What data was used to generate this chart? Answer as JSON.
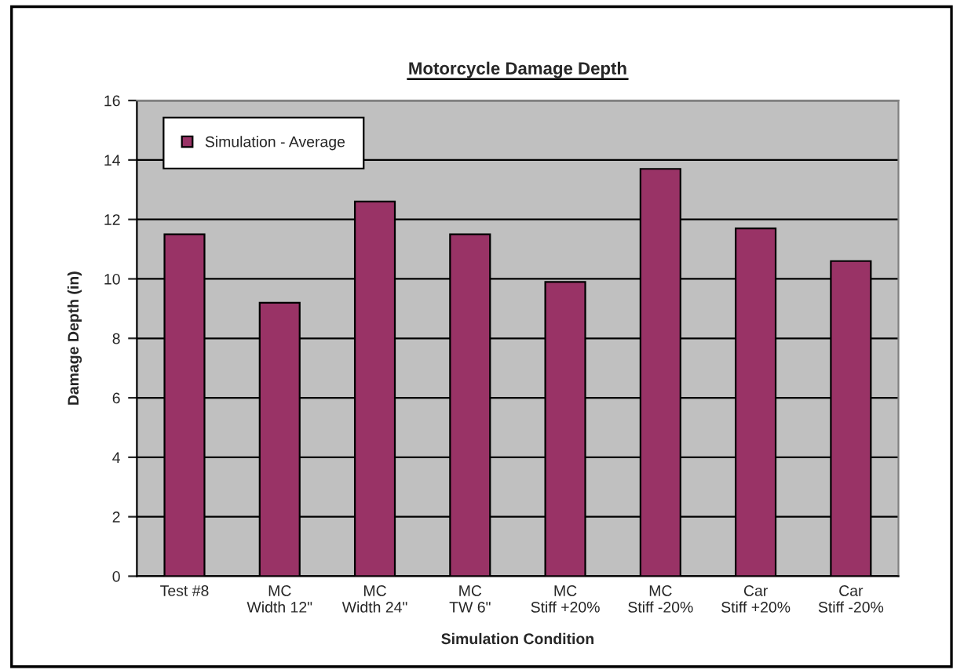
{
  "chart_data": {
    "type": "bar",
    "title": "Motorcycle Damage Depth",
    "xlabel": "Simulation Condition",
    "ylabel": "Damage Depth (in)",
    "categories": [
      "Test #8",
      "MC\nWidth 12\"",
      "MC\nWidth 24\"",
      "MC\nTW 6\"",
      "MC\nStiff +20%",
      "MC\nStiff -20%",
      "Car\nStiff +20%",
      "Car\nStiff -20%"
    ],
    "series": [
      {
        "name": "Simulation - Average",
        "color": "#993366",
        "values": [
          11.5,
          9.2,
          12.6,
          11.5,
          9.9,
          13.7,
          11.7,
          10.6
        ]
      }
    ],
    "ylim": [
      0,
      16
    ],
    "yticks": [
      0,
      2,
      4,
      6,
      8,
      10,
      12,
      14,
      16
    ],
    "grid": "y",
    "legend": "top left"
  }
}
